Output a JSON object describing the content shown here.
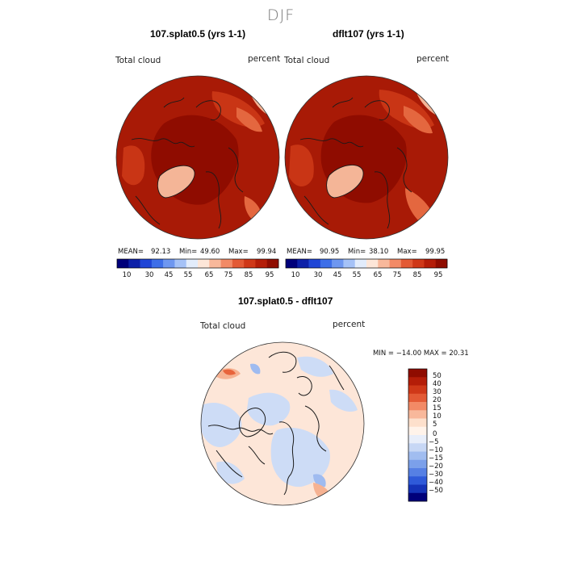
{
  "page": {
    "title": "DJF"
  },
  "panels": [
    {
      "case_title": "107.splat0.5 (yrs 1-1)",
      "field_label": "Total cloud",
      "units_label": "percent",
      "stats": {
        "mean_label": "MEAN=",
        "mean": "92.13",
        "min_label": "Min=",
        "min": "49.60",
        "max_label": "Max=",
        "max": "99.94"
      }
    },
    {
      "case_title": "dflt107 (yrs 1-1)",
      "field_label": "Total cloud",
      "units_label": "percent",
      "stats": {
        "mean_label": "MEAN=",
        "mean": "90.95",
        "min_label": "Min=",
        "min": "38.10",
        "max_label": "Max=",
        "max": "99.95"
      }
    }
  ],
  "absolute_colorbar": {
    "colors": [
      "#00007a",
      "#0d20a8",
      "#1f45d6",
      "#3d6ee8",
      "#6e97f0",
      "#a5c2f7",
      "#e2ecfb",
      "#fde6d8",
      "#f8b89b",
      "#f28a66",
      "#e35a35",
      "#cf3818",
      "#b41d08",
      "#8f0c00"
    ],
    "labels": [
      "10",
      "30",
      "45",
      "55",
      "65",
      "75",
      "85",
      "95"
    ]
  },
  "difference_panel": {
    "case_title": "107.splat0.5 - dflt107",
    "field_label": "Total cloud",
    "units_label": "percent",
    "minmax_text": "MIN = −14.00  MAX =  20.31"
  },
  "difference_colorbar": {
    "colors": [
      "#8f0c00",
      "#b41d08",
      "#cf3818",
      "#e35a35",
      "#f28a66",
      "#f8b89b",
      "#fde0cc",
      "#fff3ea",
      "#e8eefa",
      "#c7d7f5",
      "#a1bdf0",
      "#7ba0ea",
      "#5680e4",
      "#2f5ad9",
      "#1533b8",
      "#00007a"
    ],
    "labels": [
      "50",
      "40",
      "30",
      "20",
      "15",
      "10",
      "5",
      "0",
      "−5",
      "−10",
      "−15",
      "−20",
      "−30",
      "−40",
      "−50"
    ]
  },
  "map_colors": {
    "abs_base": "#a81a06",
    "abs_dark": "#8f0c00",
    "abs_mid": "#c93515",
    "abs_light": "#e4673f",
    "abs_pale": "#f4b597",
    "abs_blue": "#4b74e2",
    "abs_lightblue": "#b4cbf5",
    "diff_base": "#fde6d8",
    "diff_blue": "#cddcf6",
    "diff_blue2": "#9fbbf0",
    "diff_red": "#f6b292",
    "diff_red2": "#e8643c",
    "land": "#1a1a1a"
  }
}
